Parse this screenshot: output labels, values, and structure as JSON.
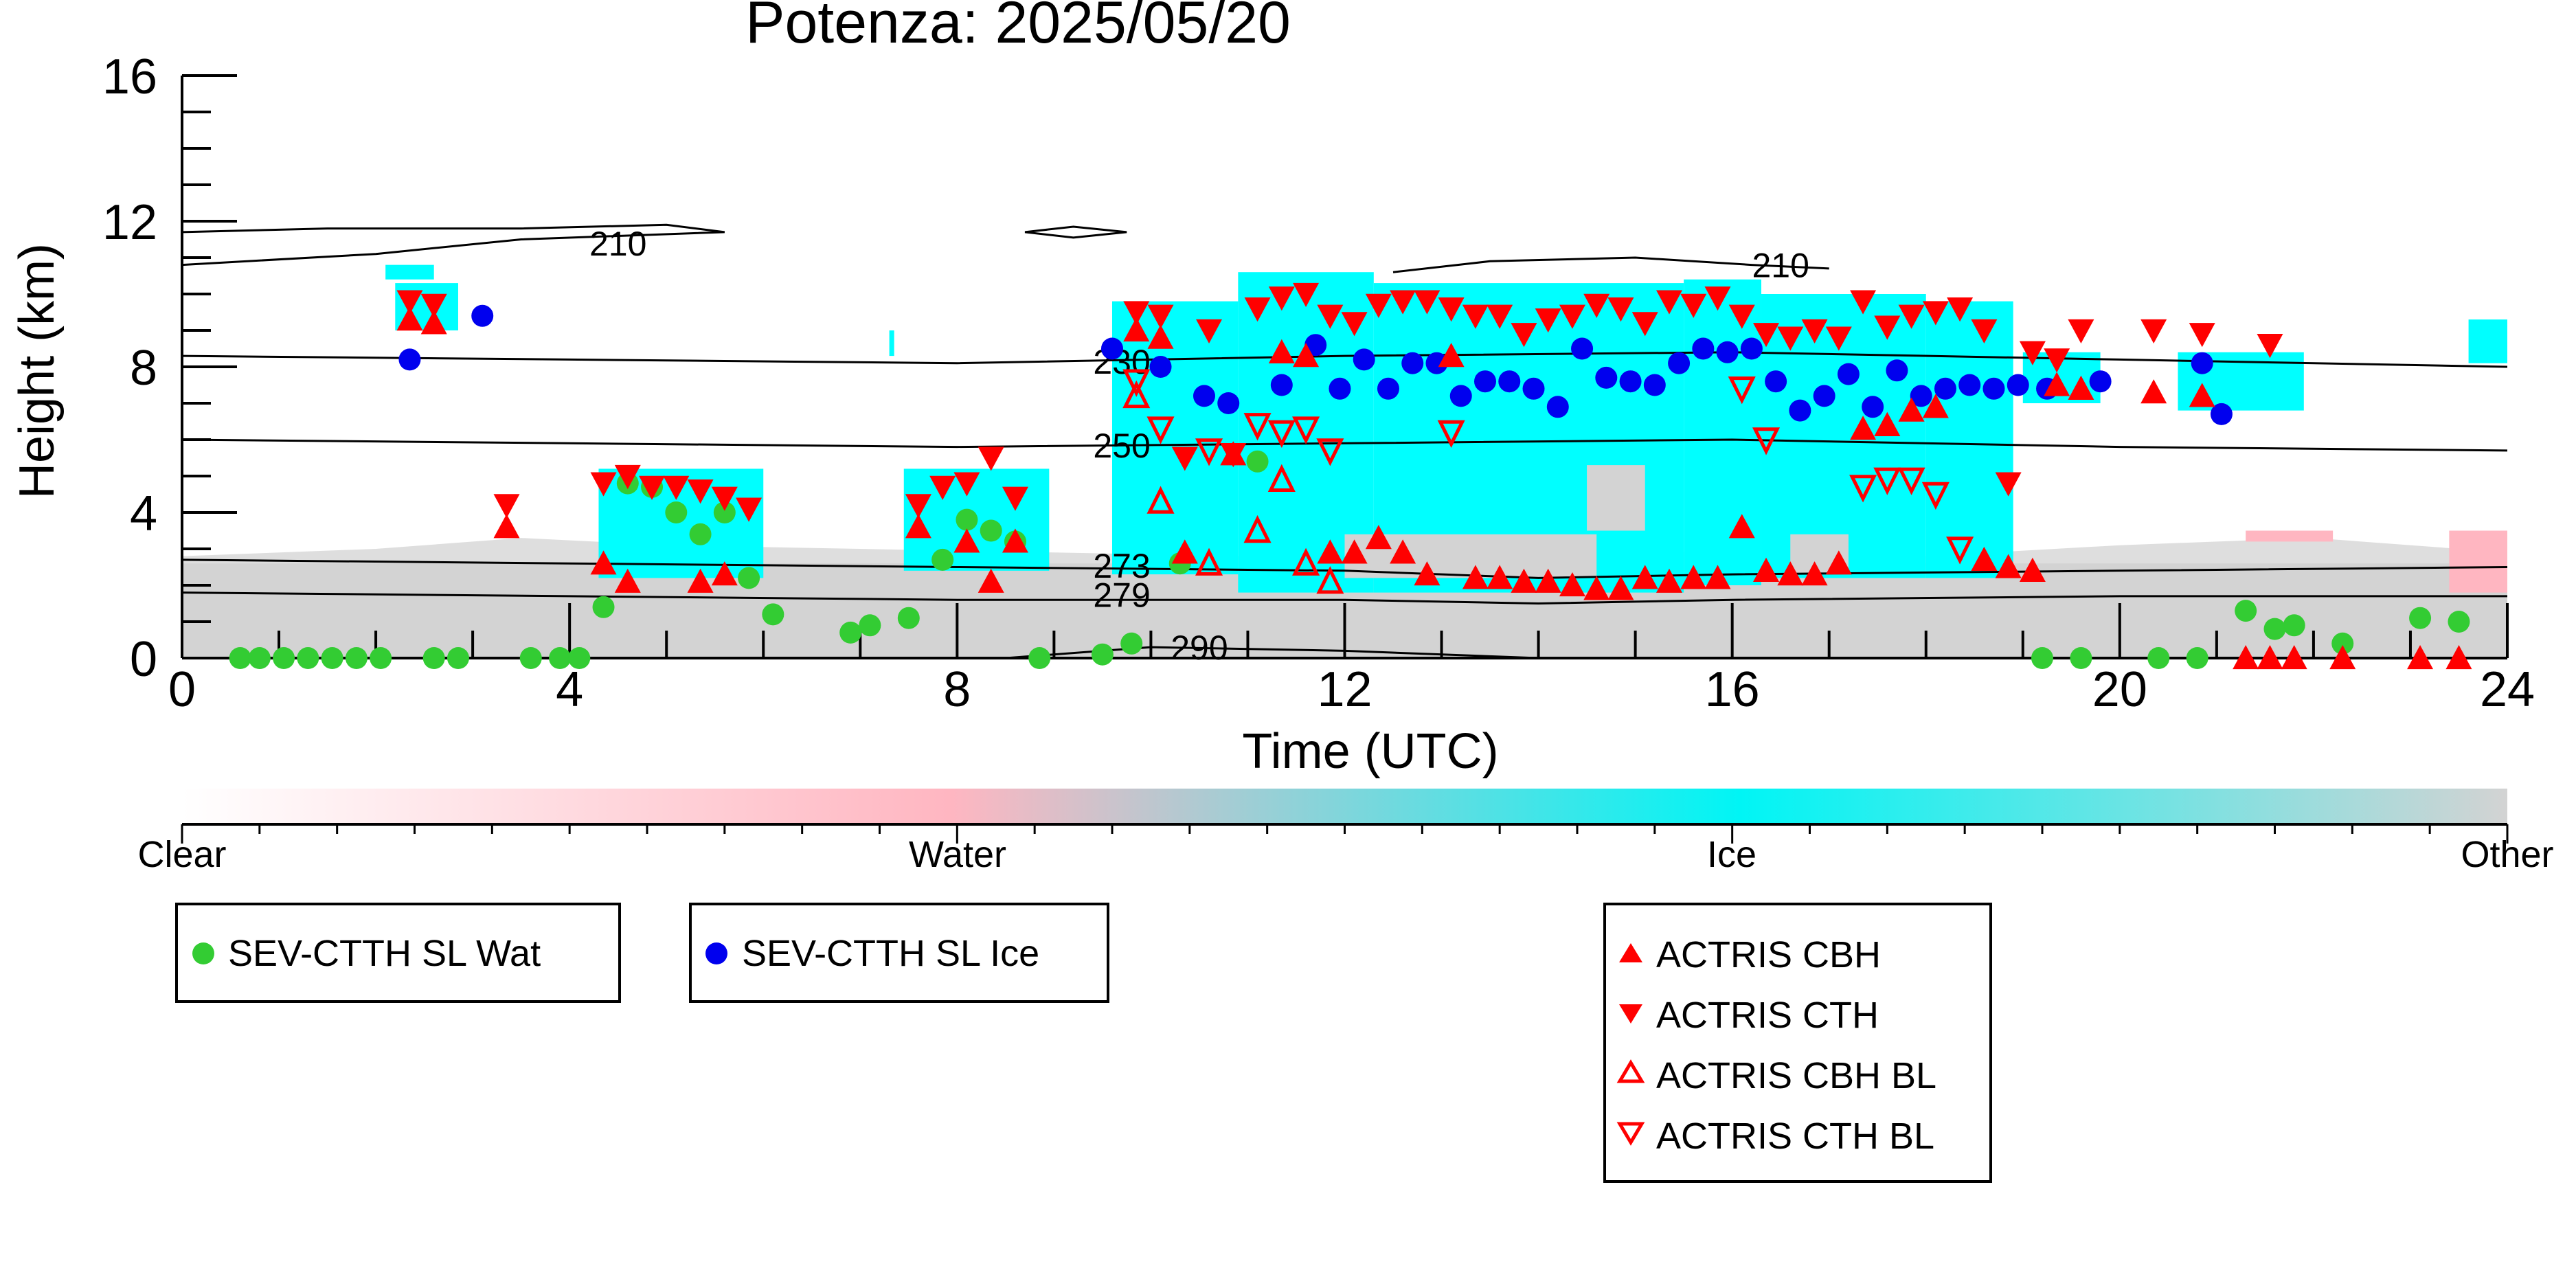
{
  "chart_data": {
    "type": "scatter",
    "title": "Potenza: 2025/05/20",
    "xlabel": "Time (UTC)",
    "ylabel": "Height (km)",
    "xlim": [
      0,
      24
    ],
    "ylim": [
      0,
      16
    ],
    "x_ticks": [
      "0",
      "4",
      "8",
      "12",
      "16",
      "20",
      "24"
    ],
    "y_ticks": [
      "0",
      "4",
      "8",
      "12",
      "16"
    ],
    "colorbar": {
      "labels": [
        "Clear",
        "Water",
        "Ice",
        "Other"
      ],
      "colors": [
        "#ffffff",
        "#ffb6c1",
        "#00ffff",
        "#d3d3d3"
      ]
    },
    "contours": [
      {
        "label": "210",
        "points": [
          [
            0,
            11.7
          ],
          [
            1.5,
            11.8
          ],
          [
            3.5,
            11.8
          ],
          [
            5,
            11.9
          ],
          [
            5.6,
            11.7
          ],
          [
            3.5,
            11.5
          ],
          [
            2,
            11.1
          ],
          [
            0,
            10.8
          ]
        ]
      },
      {
        "label": "210",
        "points": [
          [
            12.5,
            10.6
          ],
          [
            13.5,
            10.9
          ],
          [
            15,
            11.0
          ],
          [
            16.2,
            10.8
          ],
          [
            17,
            10.7
          ]
        ]
      },
      {
        "label": "230",
        "points": [
          [
            0,
            8.3
          ],
          [
            4,
            8.2
          ],
          [
            8,
            8.1
          ],
          [
            12,
            8.3
          ],
          [
            16,
            8.4
          ],
          [
            20,
            8.2
          ],
          [
            24,
            8.0
          ]
        ]
      },
      {
        "label": "250",
        "points": [
          [
            0,
            6.0
          ],
          [
            4,
            5.9
          ],
          [
            8,
            5.8
          ],
          [
            12,
            5.9
          ],
          [
            16,
            6.0
          ],
          [
            20,
            5.8
          ],
          [
            24,
            5.7
          ]
        ]
      },
      {
        "label": "273",
        "points": [
          [
            0,
            2.7
          ],
          [
            4,
            2.6
          ],
          [
            8,
            2.5
          ],
          [
            12,
            2.4
          ],
          [
            14,
            2.2
          ],
          [
            16,
            2.3
          ],
          [
            20,
            2.4
          ],
          [
            24,
            2.5
          ]
        ]
      },
      {
        "label": "279",
        "points": [
          [
            0,
            1.8
          ],
          [
            4,
            1.7
          ],
          [
            8,
            1.6
          ],
          [
            12,
            1.6
          ],
          [
            14,
            1.5
          ],
          [
            16,
            1.6
          ],
          [
            20,
            1.7
          ],
          [
            24,
            1.7
          ]
        ]
      },
      {
        "label": "290",
        "points": [
          [
            8.5,
            0.0
          ],
          [
            10,
            0.3
          ],
          [
            12,
            0.2
          ],
          [
            14,
            0.0
          ]
        ]
      }
    ],
    "series": [
      {
        "name": "SEV-CTTH SL Wat",
        "marker": "circle",
        "color": "#33cc33",
        "x": [
          0.6,
          0.8,
          1.05,
          1.3,
          1.55,
          1.8,
          2.05,
          2.6,
          2.85,
          3.6,
          3.9,
          4.1,
          4.35,
          4.6,
          4.85,
          5.1,
          5.35,
          5.6,
          5.85,
          6.1,
          6.9,
          7.1,
          7.5,
          7.85,
          8.1,
          8.35,
          8.6,
          8.85,
          9.5,
          9.8,
          10.3,
          11.1,
          19.2,
          19.6,
          20.4,
          20.8,
          21.3,
          21.6,
          21.8,
          22.3,
          23.1,
          23.5
        ],
        "y": [
          0.0,
          0.0,
          0.0,
          0.0,
          0.0,
          0.0,
          0.0,
          0.0,
          0.0,
          0.0,
          0.0,
          0.0,
          1.4,
          4.8,
          4.7,
          4.0,
          3.4,
          4.0,
          2.2,
          1.2,
          0.7,
          0.9,
          1.1,
          2.7,
          3.8,
          3.5,
          3.2,
          0.0,
          0.1,
          0.4,
          2.6,
          5.4,
          0.0,
          0.0,
          0.0,
          0.0,
          1.3,
          0.8,
          0.9,
          0.4,
          1.1,
          1.0
        ]
      },
      {
        "name": "SEV-CTTH SL Ice",
        "marker": "circle",
        "color": "#0000ee",
        "x": [
          2.35,
          3.1,
          9.6,
          10.1,
          10.55,
          10.8,
          11.35,
          11.7,
          11.95,
          12.2,
          12.45,
          12.7,
          12.95,
          13.2,
          13.45,
          13.7,
          13.95,
          14.2,
          14.45,
          14.7,
          14.95,
          15.2,
          15.45,
          15.7,
          15.95,
          16.2,
          16.45,
          16.7,
          16.95,
          17.2,
          17.45,
          17.7,
          17.95,
          18.2,
          18.45,
          18.7,
          18.95,
          19.25,
          19.8,
          20.85,
          21.05
        ],
        "y": [
          8.2,
          9.4,
          8.5,
          8.0,
          7.2,
          7.0,
          7.5,
          8.6,
          7.4,
          8.2,
          7.4,
          8.1,
          8.1,
          7.2,
          7.6,
          7.6,
          7.4,
          6.9,
          8.5,
          7.7,
          7.6,
          7.5,
          8.1,
          8.5,
          8.4,
          8.5,
          7.6,
          6.8,
          7.2,
          7.8,
          6.9,
          7.9,
          7.2,
          7.4,
          7.5,
          7.4,
          7.5,
          7.4,
          7.6,
          8.1,
          6.7
        ]
      },
      {
        "name": "ACTRIS CBH",
        "marker": "triangle-up",
        "color": "#ff0000",
        "x": [
          2.35,
          2.6,
          3.35,
          4.35,
          4.6,
          5.35,
          5.6,
          7.6,
          8.1,
          8.35,
          8.6,
          9.85,
          10.1,
          10.35,
          10.85,
          11.35,
          11.6,
          11.85,
          12.1,
          12.35,
          12.6,
          12.85,
          13.1,
          13.35,
          13.6,
          13.85,
          14.1,
          14.35,
          14.6,
          14.85,
          15.1,
          15.35,
          15.6,
          15.85,
          16.1,
          16.35,
          16.6,
          16.85,
          17.1,
          17.35,
          17.6,
          17.85,
          18.1,
          18.6,
          18.85,
          19.1,
          19.35,
          19.6,
          20.35,
          20.85,
          21.3,
          21.55,
          21.8,
          22.3,
          23.1,
          23.5
        ],
        "y": [
          9.3,
          9.2,
          3.6,
          2.6,
          2.1,
          2.1,
          2.3,
          3.6,
          3.2,
          2.1,
          3.2,
          9.0,
          8.8,
          2.9,
          5.6,
          8.4,
          8.3,
          2.9,
          2.9,
          3.3,
          2.9,
          2.3,
          8.3,
          2.2,
          2.2,
          2.1,
          2.1,
          2.0,
          1.9,
          1.9,
          2.2,
          2.1,
          2.2,
          2.2,
          3.6,
          2.4,
          2.3,
          2.3,
          2.6,
          6.3,
          6.4,
          6.8,
          6.9,
          2.7,
          2.5,
          2.4,
          7.5,
          7.4,
          7.3,
          7.2,
          0.0,
          0.0,
          0.0,
          0.0,
          0.0,
          0.0
        ]
      },
      {
        "name": "ACTRIS CTH",
        "marker": "triangle-down",
        "color": "#ff0000",
        "x": [
          2.35,
          2.6,
          3.35,
          4.35,
          4.6,
          4.85,
          5.1,
          5.35,
          5.6,
          5.85,
          7.6,
          7.85,
          8.1,
          8.35,
          8.6,
          9.85,
          10.1,
          10.35,
          10.6,
          10.85,
          11.1,
          11.35,
          11.6,
          11.85,
          12.1,
          12.35,
          12.6,
          12.85,
          13.1,
          13.35,
          13.6,
          13.85,
          14.1,
          14.35,
          14.6,
          14.85,
          15.1,
          15.35,
          15.6,
          15.85,
          16.1,
          16.35,
          16.6,
          16.85,
          17.1,
          17.35,
          17.6,
          17.85,
          18.1,
          18.35,
          18.6,
          18.85,
          19.1,
          19.35,
          19.6,
          20.35,
          20.85,
          21.55
        ],
        "y": [
          9.8,
          9.7,
          4.2,
          4.8,
          5.0,
          4.7,
          4.7,
          4.6,
          4.4,
          4.1,
          4.2,
          4.7,
          4.8,
          5.5,
          4.4,
          9.5,
          9.4,
          5.5,
          9.0,
          5.6,
          9.6,
          9.9,
          10.0,
          9.4,
          9.2,
          9.7,
          9.8,
          9.8,
          9.6,
          9.4,
          9.4,
          8.9,
          9.3,
          9.4,
          9.7,
          9.6,
          9.2,
          9.8,
          9.7,
          9.9,
          9.4,
          8.9,
          8.8,
          9.0,
          8.8,
          9.8,
          9.1,
          9.4,
          9.5,
          9.6,
          9.0,
          4.8,
          8.4,
          8.2,
          9.0,
          9.0,
          8.9,
          8.6
        ]
      },
      {
        "name": "ACTRIS CBH BL",
        "marker": "triangle-up-open",
        "color": "#ff0000",
        "x": [
          9.85,
          10.1,
          10.6,
          11.1,
          11.35,
          11.6,
          11.85
        ],
        "y": [
          7.2,
          4.3,
          2.6,
          3.5,
          4.9,
          2.6,
          2.1
        ]
      },
      {
        "name": "ACTRIS CTH BL",
        "marker": "triangle-down-open",
        "color": "#ff0000",
        "x": [
          9.85,
          10.1,
          10.6,
          11.1,
          11.35,
          11.6,
          11.85,
          13.1,
          16.1,
          16.35,
          17.35,
          17.6,
          17.85,
          18.1,
          18.35
        ],
        "y": [
          7.6,
          6.3,
          5.7,
          6.4,
          6.2,
          6.3,
          5.7,
          6.2,
          7.4,
          6.0,
          4.7,
          4.9,
          4.9,
          4.5,
          3.0
        ]
      }
    ],
    "legends": [
      {
        "entries": [
          "SEV-CTTH SL Wat"
        ]
      },
      {
        "entries": [
          "SEV-CTTH SL Ice"
        ]
      },
      {
        "entries": [
          "ACTRIS CBH",
          "ACTRIS CTH",
          "ACTRIS CBH BL",
          "ACTRIS CTH BL"
        ]
      }
    ],
    "grid": false
  }
}
